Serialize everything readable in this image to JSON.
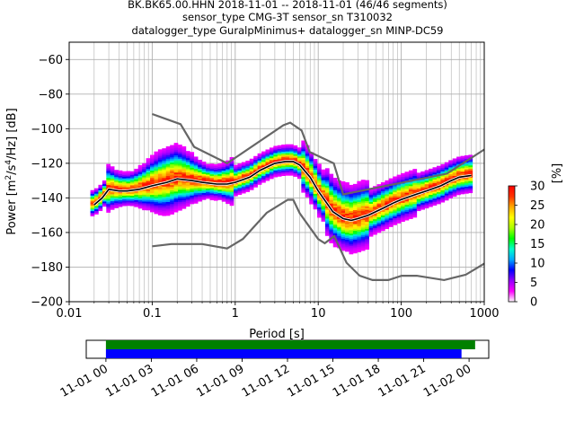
{
  "title": {
    "line1": "BK.BK65.00.HHN   2018-11-01 -- 2018-11-01  (46/46 segments)",
    "line2": "sensor_type CMG-3T sensor_sn T310032",
    "line3": "datalogger_type GuralpMinimus+ datalogger_sn MINP-DC59"
  },
  "chart_data": [
    {
      "type": "heatmap",
      "xlabel": "Period [s]",
      "ylabel_parts": [
        "Power [m",
        "2",
        "/s",
        "4",
        "/Hz] [dB]"
      ],
      "xscale": "log",
      "xlim": [
        0.01,
        1000
      ],
      "ylim": [
        -200,
        -50
      ],
      "xticks": [
        0.01,
        0.1,
        1,
        10,
        100,
        1000
      ],
      "xtick_labels": [
        "0.01",
        "0.1",
        "1",
        "10",
        "100",
        "1000"
      ],
      "yticks": [
        -200,
        -180,
        -160,
        -140,
        -120,
        -100,
        -80,
        -60
      ],
      "ytick_labels": [
        "−200",
        "−180",
        "−160",
        "−140",
        "−120",
        "−100",
        "−80",
        "−60"
      ],
      "grid": true,
      "colorbar": {
        "label": "[%]",
        "min": 0,
        "max": 30,
        "ticks": [
          0,
          5,
          10,
          15,
          20,
          25,
          30
        ],
        "tick_labels": [
          "0",
          "5",
          "10",
          "15",
          "20",
          "25",
          "30"
        ],
        "colors": [
          "#ffffff",
          "#ff00ff",
          "#9400ff",
          "#0000ff",
          "#00aaff",
          "#00ffcc",
          "#00ff00",
          "#aaff00",
          "#ffff00",
          "#ffaa00",
          "#ff3300",
          "#ff0000"
        ]
      },
      "mean_curve": {
        "x": [
          0.02,
          0.025,
          0.03,
          0.04,
          0.05,
          0.07,
          0.1,
          0.15,
          0.2,
          0.3,
          0.4,
          0.6,
          0.8,
          1,
          1.5,
          2,
          3,
          4,
          5,
          6,
          8,
          10,
          15,
          20,
          25,
          30,
          40,
          60,
          80,
          100,
          150,
          200,
          300,
          400,
          500,
          700
        ],
        "y": [
          -144,
          -140,
          -135,
          -136,
          -136,
          -135,
          -133,
          -131,
          -129,
          -130,
          -131,
          -132,
          -132,
          -131,
          -128,
          -124,
          -120,
          -119,
          -119,
          -121,
          -128,
          -136,
          -148,
          -152,
          -153,
          -152,
          -150,
          -146,
          -143,
          -141,
          -138,
          -136,
          -133,
          -130,
          -128,
          -127
        ]
      },
      "mode_curve": {
        "x": [
          0.02,
          0.025,
          0.03,
          0.04,
          0.05,
          0.07,
          0.1,
          0.15,
          0.2,
          0.3,
          0.4,
          0.6,
          0.8,
          1,
          1.5,
          2,
          3,
          4,
          5,
          6,
          8,
          10,
          15,
          20,
          25,
          30,
          40,
          60,
          80,
          100,
          150,
          200,
          300,
          400,
          500,
          700
        ],
        "y": [
          -143,
          -139,
          -134,
          -135,
          -135,
          -134,
          -132,
          -130,
          -128,
          -129,
          -130,
          -131,
          -131,
          -130,
          -127,
          -123,
          -119,
          -118,
          -118,
          -120,
          -127,
          -135,
          -147,
          -151,
          -152,
          -151,
          -149,
          -145,
          -142,
          -140,
          -137,
          -135,
          -132,
          -129,
          -127,
          -126
        ]
      },
      "high_noise_model": {
        "x": [
          0.1,
          0.22,
          0.32,
          0.8,
          3.8,
          4.6,
          6.3,
          7.9,
          15.4,
          20,
          354.8,
          1000
        ],
        "y": [
          -91.5,
          -97.4,
          -110.5,
          -120,
          -98,
          -96.5,
          -101,
          -113.5,
          -120,
          -138,
          -126,
          -112
        ]
      },
      "low_noise_model": {
        "x": [
          0.1,
          0.17,
          0.4,
          0.8,
          1.24,
          2.4,
          4.3,
          5,
          6,
          10,
          12,
          15.6,
          21.9,
          31.6,
          45,
          70,
          101,
          154,
          328,
          600,
          1000
        ],
        "y": [
          -168,
          -166.7,
          -166.7,
          -169.2,
          -163.7,
          -148.6,
          -141.1,
          -141.1,
          -149,
          -163.8,
          -166.2,
          -162.1,
          -177.5,
          -185,
          -187.5,
          -187.5,
          -185,
          -185,
          -187.5,
          -184.4,
          -178
        ]
      }
    },
    {
      "type": "timeline",
      "x_ticks": [
        "11-01 00",
        "11-01 03",
        "11-01 06",
        "11-01 09",
        "11-01 12",
        "11-01 15",
        "11-01 18",
        "11-01 21",
        "11-02 00"
      ],
      "hours_start": -1.3,
      "hours_end": 25.3,
      "series": [
        {
          "color": "#008000",
          "start_hour": 0,
          "end_hour": 24.4
        },
        {
          "color": "#0000ff",
          "start_hour": 0,
          "end_hour": 23.5
        }
      ]
    }
  ]
}
